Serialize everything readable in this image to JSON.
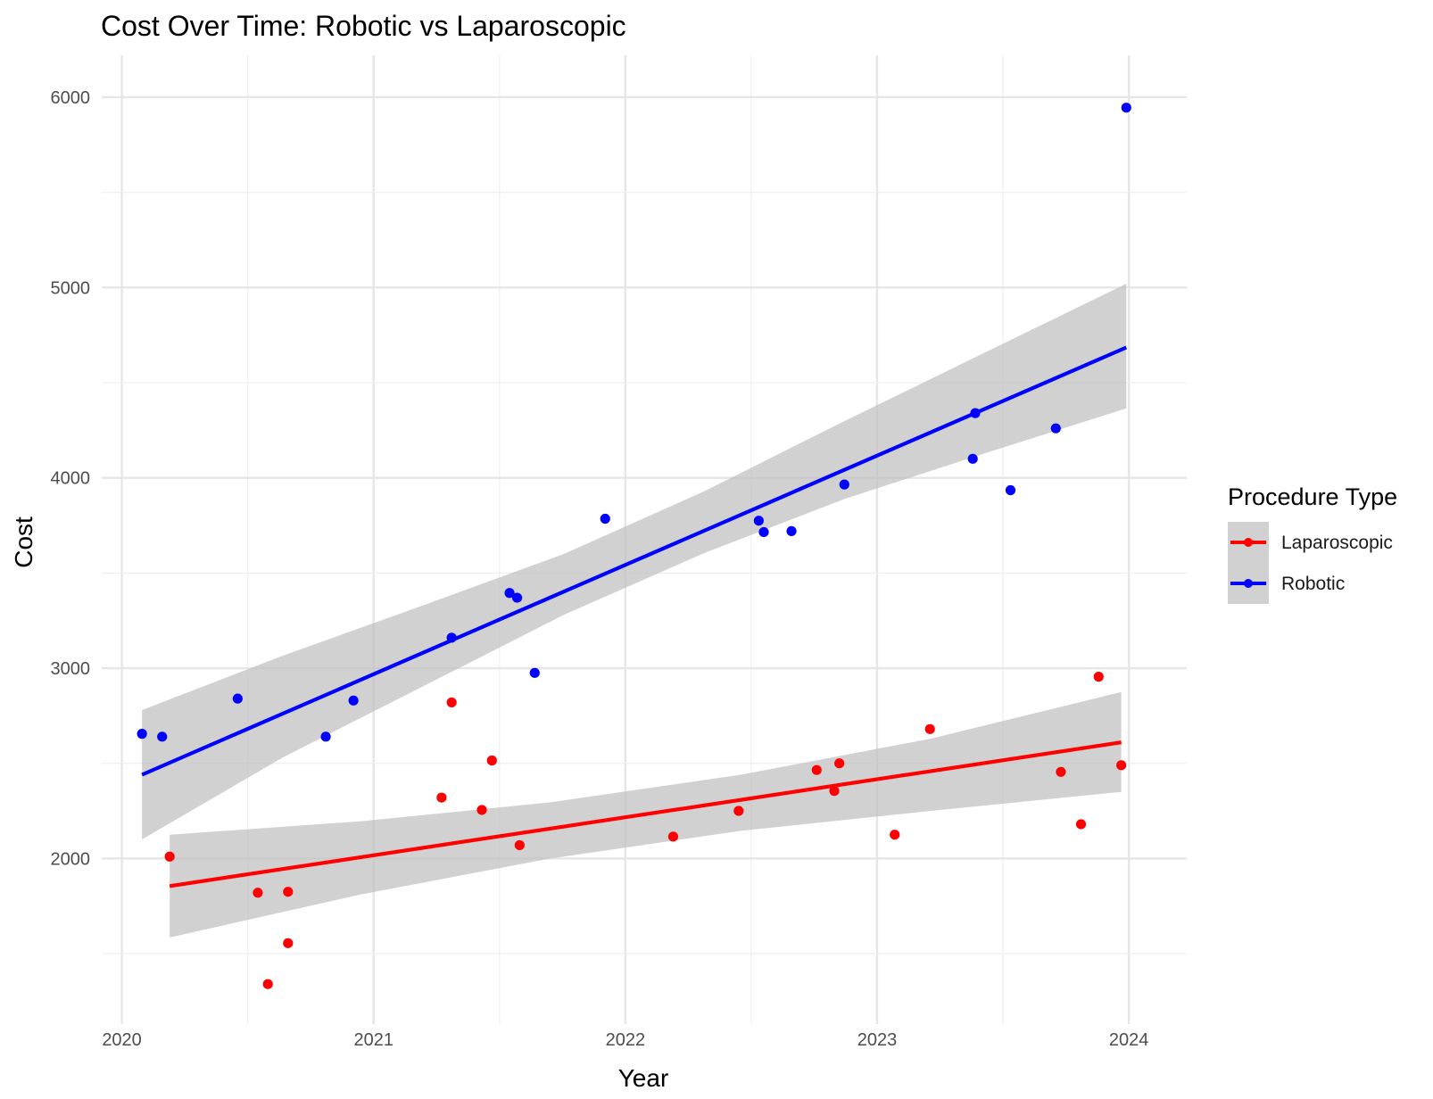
{
  "chart_data": {
    "type": "scatter",
    "title": "Cost Over Time: Robotic vs Laparoscopic",
    "xlabel": "Year",
    "ylabel": "Cost",
    "xlim": [
      2019.92,
      2024.23
    ],
    "ylim": [
      1130,
      6220
    ],
    "x_ticks": [
      2020,
      2021,
      2022,
      2023,
      2024
    ],
    "y_ticks": [
      2000,
      3000,
      4000,
      5000,
      6000
    ],
    "grid": true,
    "legend": {
      "title": "Procedure Type",
      "position": "right"
    },
    "series": [
      {
        "name": "Laparoscopic",
        "color": "#ff0000",
        "points": [
          {
            "x": 2020.19,
            "y": 2010
          },
          {
            "x": 2020.54,
            "y": 1820
          },
          {
            "x": 2020.58,
            "y": 1340
          },
          {
            "x": 2020.66,
            "y": 1825
          },
          {
            "x": 2020.66,
            "y": 1555
          },
          {
            "x": 2021.27,
            "y": 2320
          },
          {
            "x": 2021.31,
            "y": 2820
          },
          {
            "x": 2021.43,
            "y": 2255
          },
          {
            "x": 2021.47,
            "y": 2515
          },
          {
            "x": 2021.58,
            "y": 2070
          },
          {
            "x": 2022.19,
            "y": 2115
          },
          {
            "x": 2022.45,
            "y": 2250
          },
          {
            "x": 2022.76,
            "y": 2465
          },
          {
            "x": 2022.83,
            "y": 2355
          },
          {
            "x": 2022.85,
            "y": 2500
          },
          {
            "x": 2023.07,
            "y": 2125
          },
          {
            "x": 2023.21,
            "y": 2680
          },
          {
            "x": 2023.73,
            "y": 2455
          },
          {
            "x": 2023.81,
            "y": 2180
          },
          {
            "x": 2023.88,
            "y": 2955
          },
          {
            "x": 2023.97,
            "y": 2490
          }
        ],
        "trend": {
          "x": [
            2020.19,
            2023.97
          ],
          "y": [
            1855,
            2610
          ]
        },
        "ci_lower": [
          1585,
          1810,
          2000,
          2145,
          2250,
          2350
        ],
        "ci_upper": [
          2125,
          2195,
          2295,
          2440,
          2630,
          2875
        ]
      },
      {
        "name": "Robotic",
        "color": "#0000ff",
        "points": [
          {
            "x": 2020.08,
            "y": 2655
          },
          {
            "x": 2020.16,
            "y": 2640
          },
          {
            "x": 2020.46,
            "y": 2840
          },
          {
            "x": 2020.81,
            "y": 2640
          },
          {
            "x": 2020.92,
            "y": 2830
          },
          {
            "x": 2021.31,
            "y": 3160
          },
          {
            "x": 2021.54,
            "y": 3395
          },
          {
            "x": 2021.57,
            "y": 3370
          },
          {
            "x": 2021.64,
            "y": 2975
          },
          {
            "x": 2021.92,
            "y": 3785
          },
          {
            "x": 2022.53,
            "y": 3775
          },
          {
            "x": 2022.55,
            "y": 3715
          },
          {
            "x": 2022.66,
            "y": 3720
          },
          {
            "x": 2022.87,
            "y": 3965
          },
          {
            "x": 2023.38,
            "y": 4100
          },
          {
            "x": 2023.39,
            "y": 4340
          },
          {
            "x": 2023.53,
            "y": 3935
          },
          {
            "x": 2023.71,
            "y": 4260
          },
          {
            "x": 2023.99,
            "y": 5945
          }
        ],
        "trend": {
          "x": [
            2020.08,
            2023.99
          ],
          "y": [
            2440,
            4685
          ]
        },
        "ci_lower": [
          2100,
          2530,
          2905,
          3280,
          3605,
          3890,
          4130,
          4365
        ],
        "ci_upper": [
          2780,
          3065,
          3330,
          3600,
          3930,
          4300,
          4660,
          5020
        ]
      }
    ]
  }
}
